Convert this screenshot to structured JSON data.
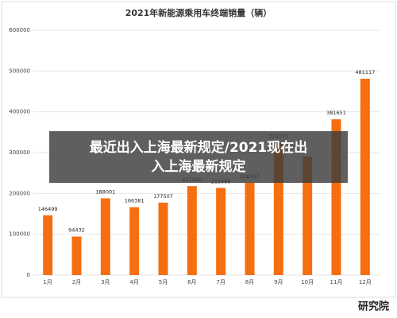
{
  "chart_data": {
    "type": "bar",
    "title": "2021年新能源乘用车终端销量（辆）",
    "categories": [
      "1月",
      "2月",
      "3月",
      "4月",
      "5月",
      "6月",
      "7月",
      "8月",
      "9月",
      "10月",
      "11月",
      "12月"
    ],
    "values": [
      146499,
      94432,
      188001,
      166381,
      177507,
      217920,
      213589,
      226357,
      324273,
      290000,
      381651,
      481117
    ],
    "value_labels": [
      "146499",
      "94432",
      "188001",
      "166381",
      "177507",
      "217920",
      "213589",
      "226357",
      "324273",
      null,
      "381651",
      "481117"
    ],
    "color": "#f56e10",
    "ylim": [
      0,
      600000
    ],
    "yticks": [
      0,
      100000,
      200000,
      300000,
      400000,
      500000,
      600000
    ],
    "grid": true,
    "overlay_text": "最近出入上海最新规定/2021现在出入上海最新规定",
    "watermark": "研究院"
  }
}
